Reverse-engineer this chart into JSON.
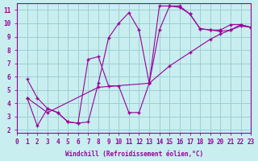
{
  "background_color": "#c8eef0",
  "grid_color": "#9ecfd2",
  "line_color": "#990099",
  "marker": "+",
  "xlabel": "Windchill (Refroidissement éolien,°C)",
  "xlim": [
    0,
    23
  ],
  "ylim": [
    1.8,
    11.5
  ],
  "xticks": [
    0,
    1,
    2,
    3,
    4,
    5,
    6,
    7,
    8,
    9,
    10,
    11,
    12,
    13,
    14,
    15,
    16,
    17,
    18,
    19,
    20,
    21,
    22,
    23
  ],
  "yticks": [
    2,
    3,
    4,
    5,
    6,
    7,
    8,
    9,
    10,
    11
  ],
  "line1_x": [
    1,
    2,
    3,
    4,
    5,
    6,
    7,
    8,
    9,
    10,
    11,
    12,
    13,
    14,
    15,
    16,
    17,
    18,
    19,
    20,
    21,
    22,
    23
  ],
  "line1_y": [
    5.8,
    4.4,
    3.6,
    3.3,
    2.6,
    2.5,
    2.6,
    5.5,
    8.9,
    10.0,
    10.8,
    9.5,
    5.5,
    9.5,
    11.3,
    11.3,
    10.7,
    9.6,
    9.5,
    9.4,
    9.5,
    9.9,
    9.7
  ],
  "line2_x": [
    1,
    2,
    3,
    4,
    5,
    6,
    7,
    8,
    9,
    10,
    11,
    12,
    13,
    14,
    15,
    16,
    17,
    18,
    19,
    20,
    21,
    22,
    23
  ],
  "line2_y": [
    4.4,
    2.3,
    3.6,
    3.3,
    2.6,
    2.5,
    7.3,
    7.5,
    5.3,
    5.3,
    3.3,
    3.3,
    5.5,
    11.3,
    11.3,
    11.2,
    10.7,
    9.6,
    9.5,
    9.5,
    9.9,
    9.9,
    9.7
  ],
  "line3_x": [
    1,
    3,
    8,
    13,
    15,
    17,
    19,
    20,
    21,
    22,
    23
  ],
  "line3_y": [
    4.4,
    3.3,
    5.2,
    5.5,
    6.8,
    7.8,
    8.8,
    9.2,
    9.5,
    9.8,
    9.7
  ]
}
